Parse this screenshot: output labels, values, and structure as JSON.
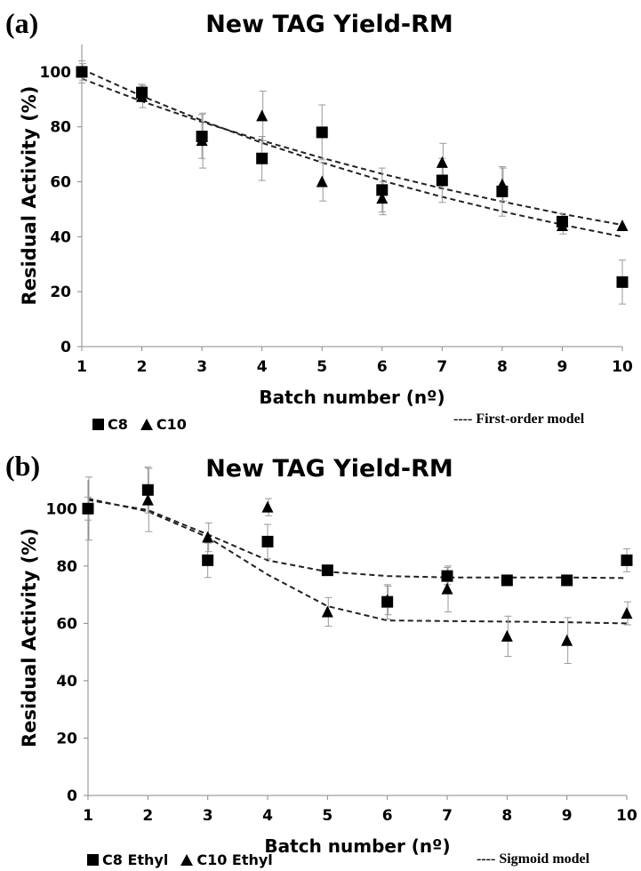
{
  "chart_data": [
    {
      "panel": "(a)",
      "type": "scatter",
      "title": "New TAG Yield-RM",
      "xlabel": "Batch number  (nº)",
      "ylabel": "Residual Activity (%)",
      "xlim": [
        1,
        10
      ],
      "ylim": [
        0,
        110
      ],
      "xticks": [
        "1",
        "2",
        "3",
        "4",
        "5",
        "6",
        "7",
        "8",
        "9",
        "10"
      ],
      "yticks": [
        "0",
        "20",
        "40",
        "60",
        "80",
        "100"
      ],
      "model_label": "---- First-order model",
      "series": [
        {
          "name": "C8",
          "marker": "square",
          "x": [
            1,
            2,
            3,
            4,
            5,
            6,
            7,
            8,
            9,
            10
          ],
          "y": [
            100,
            92.5,
            76.5,
            68.5,
            78,
            57,
            60.5,
            56.5,
            45.5,
            23.5
          ],
          "err": [
            4,
            3,
            8,
            8,
            10,
            8,
            8,
            9,
            3,
            8
          ]
        },
        {
          "name": "C10",
          "marker": "triangle",
          "x": [
            1,
            2,
            3,
            4,
            5,
            6,
            7,
            8,
            9,
            10
          ],
          "y": [
            100,
            91,
            75,
            84,
            60,
            54,
            67,
            59,
            44,
            44
          ],
          "err": [
            3,
            4,
            10,
            9,
            7,
            6,
            7,
            6,
            3,
            0
          ]
        }
      ],
      "fits": [
        {
          "x": [
            1,
            2,
            3,
            4,
            5,
            6,
            7,
            8,
            9,
            10
          ],
          "y": [
            101,
            91.2,
            82.3,
            74.2,
            67,
            60.4,
            54.5,
            49.2,
            44.4,
            40
          ]
        },
        {
          "x": [
            1,
            2,
            3,
            4,
            5,
            6,
            7,
            8,
            9,
            10
          ],
          "y": [
            97.5,
            89.3,
            81.8,
            75,
            68.7,
            62.9,
            57.6,
            52.8,
            48.3,
            44.3
          ]
        }
      ]
    },
    {
      "panel": "(b)",
      "type": "scatter",
      "title": "New TAG Yield-RM",
      "xlabel": "Batch number  (nº)",
      "ylabel": "Residual Activity (%)",
      "xlim": [
        1,
        10
      ],
      "ylim": [
        0,
        110
      ],
      "xticks": [
        "1",
        "2",
        "3",
        "4",
        "5",
        "6",
        "7",
        "8",
        "9",
        "10"
      ],
      "yticks": [
        "0",
        "20",
        "40",
        "60",
        "80",
        "100"
      ],
      "model_label": "---- Sigmoid model",
      "series": [
        {
          "name": "C8 Ethyl",
          "marker": "square",
          "x": [
            1,
            2,
            3,
            4,
            5,
            6,
            7,
            8,
            9,
            10
          ],
          "y": [
            100,
            106.5,
            82,
            88.5,
            78.5,
            67.5,
            76.5,
            75,
            75,
            82
          ],
          "err": [
            4,
            8,
            6,
            6,
            0,
            6,
            3,
            0,
            0,
            4
          ]
        },
        {
          "name": "C10 Ethyl",
          "marker": "triangle",
          "x": [
            1,
            2,
            3,
            4,
            5,
            6,
            7,
            8,
            9,
            10
          ],
          "y": [
            100,
            103,
            90,
            100.5,
            64,
            68,
            72,
            55.5,
            54,
            63.5
          ],
          "err": [
            11,
            11,
            5,
            3,
            5,
            5,
            8,
            7,
            8,
            4
          ]
        }
      ],
      "fits": [
        {
          "x": [
            1,
            2,
            3,
            4,
            5,
            6,
            7,
            8,
            9,
            10
          ],
          "y": [
            103,
            99.5,
            91,
            82,
            78,
            76.5,
            76,
            76,
            76,
            75.8
          ]
        },
        {
          "x": [
            1,
            2,
            3,
            4,
            5,
            6,
            7,
            8,
            9,
            10
          ],
          "y": [
            103.5,
            99,
            90,
            77,
            66,
            61,
            60.8,
            60.6,
            60.4,
            60
          ]
        }
      ]
    }
  ]
}
